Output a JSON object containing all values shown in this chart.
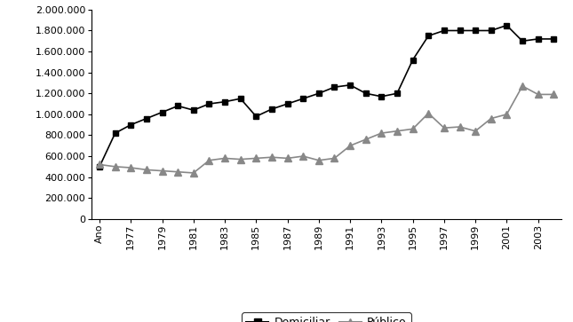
{
  "years_numeric": [
    1975,
    1976,
    1977,
    1978,
    1979,
    1980,
    1981,
    1982,
    1983,
    1984,
    1985,
    1986,
    1987,
    1988,
    1989,
    1990,
    1991,
    1992,
    1993,
    1994,
    1995,
    1996,
    1997,
    1998,
    1999,
    2000,
    2001,
    2002,
    2003,
    2004
  ],
  "domiciliar": [
    500000,
    820000,
    900000,
    960000,
    1020000,
    1080000,
    1040000,
    1100000,
    1120000,
    1150000,
    980000,
    1050000,
    1100000,
    1150000,
    1200000,
    1260000,
    1280000,
    1200000,
    1170000,
    1200000,
    1520000,
    1750000,
    1800000,
    1800000,
    1800000,
    1800000,
    1850000,
    1700000,
    1720000,
    1720000
  ],
  "publico": [
    520000,
    500000,
    490000,
    470000,
    460000,
    450000,
    440000,
    560000,
    580000,
    570000,
    580000,
    590000,
    580000,
    600000,
    560000,
    580000,
    700000,
    760000,
    820000,
    840000,
    860000,
    1010000,
    870000,
    880000,
    840000,
    960000,
    1000000,
    1270000,
    1190000,
    1190000
  ],
  "x_labels": [
    "Ano",
    "1977",
    "1979",
    "1981",
    "1983",
    "1985",
    "1987",
    "1989",
    "1991",
    "1993",
    "1995",
    "1997",
    "1999",
    "2001",
    "2003"
  ],
  "x_tick_positions": [
    1975,
    1977,
    1979,
    1981,
    1983,
    1985,
    1987,
    1989,
    1991,
    1993,
    1995,
    1997,
    1999,
    2001,
    2003
  ],
  "xlim": [
    1974.5,
    2004.5
  ],
  "ylim": [
    0,
    2000000
  ],
  "yticks": [
    0,
    200000,
    400000,
    600000,
    800000,
    1000000,
    1200000,
    1400000,
    1600000,
    1800000,
    2000000
  ],
  "line_color_dom": "#000000",
  "line_color_pub": "#888888",
  "marker_dom": "s",
  "marker_pub": "^",
  "markersize_dom": 5,
  "markersize_pub": 6,
  "linewidth": 1.2,
  "legend_dom": "Domiciliar",
  "legend_pub": "Público",
  "bg_color": "#ffffff"
}
